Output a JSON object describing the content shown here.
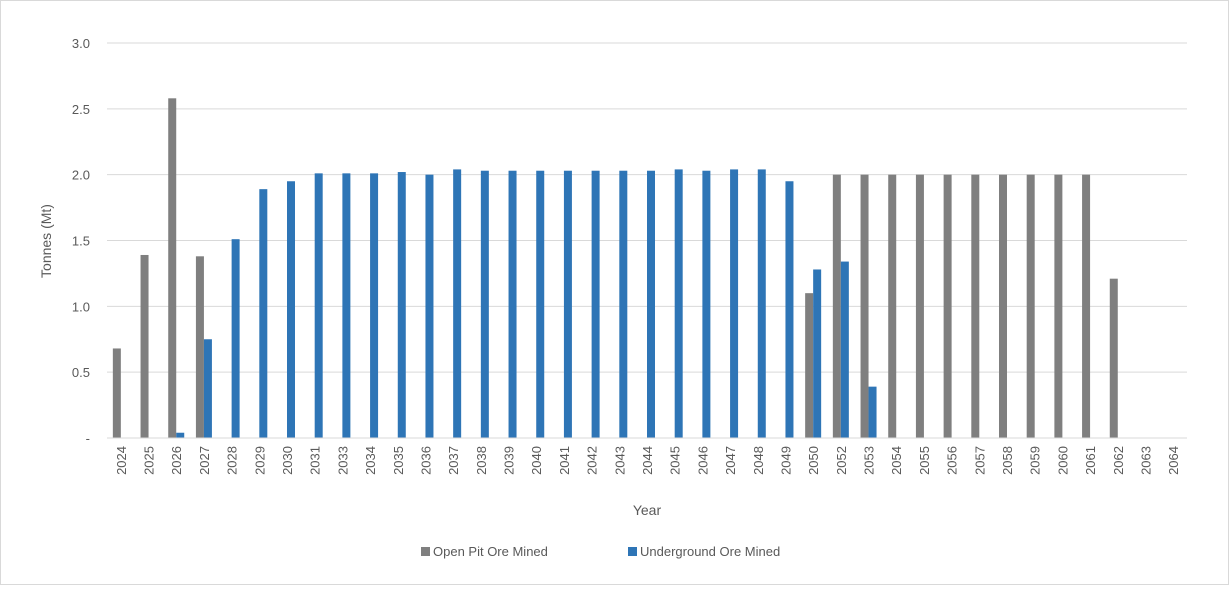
{
  "chart_data": {
    "type": "bar",
    "title": "",
    "xlabel": "Year",
    "ylabel": "Tonnes (Mt)",
    "ylim": [
      0,
      3.0
    ],
    "yticks": [
      "-",
      "0.5",
      "1.0",
      "1.5",
      "2.0",
      "2.5",
      "3.0"
    ],
    "grid": true,
    "legend_position": "bottom",
    "categories": [
      "2024",
      "2025",
      "2026",
      "2027",
      "2028",
      "2029",
      "2030",
      "2031",
      "2033",
      "2034",
      "2035",
      "2036",
      "2037",
      "2038",
      "2039",
      "2040",
      "2041",
      "2042",
      "2043",
      "2044",
      "2045",
      "2046",
      "2047",
      "2048",
      "2049",
      "2050",
      "2052",
      "2053",
      "2054",
      "2055",
      "2056",
      "2057",
      "2058",
      "2059",
      "2060",
      "2061",
      "2062",
      "2063",
      "2064"
    ],
    "series": [
      {
        "name": "Open Pit Ore Mined",
        "color": "#7f7f7f",
        "values": [
          0.68,
          1.39,
          2.58,
          1.38,
          0,
          0,
          0,
          0,
          0,
          0,
          0,
          0,
          0,
          0,
          0,
          0,
          0,
          0,
          0,
          0,
          0,
          0,
          0,
          0,
          0,
          1.1,
          2.0,
          2.0,
          2.0,
          2.0,
          2.0,
          2.0,
          2.0,
          2.0,
          2.0,
          2.0,
          1.21,
          0,
          0
        ]
      },
      {
        "name": "Underground Ore Mined",
        "color": "#2e75b6",
        "values": [
          0,
          0,
          0.04,
          0.75,
          1.51,
          1.89,
          1.95,
          2.01,
          2.01,
          2.01,
          2.02,
          2.0,
          2.04,
          2.03,
          2.03,
          2.03,
          2.03,
          2.03,
          2.03,
          2.03,
          2.04,
          2.03,
          2.04,
          2.04,
          1.95,
          1.28,
          1.34,
          0.39,
          0,
          0,
          0,
          0,
          0,
          0,
          0,
          0,
          0,
          0,
          0
        ]
      }
    ]
  }
}
